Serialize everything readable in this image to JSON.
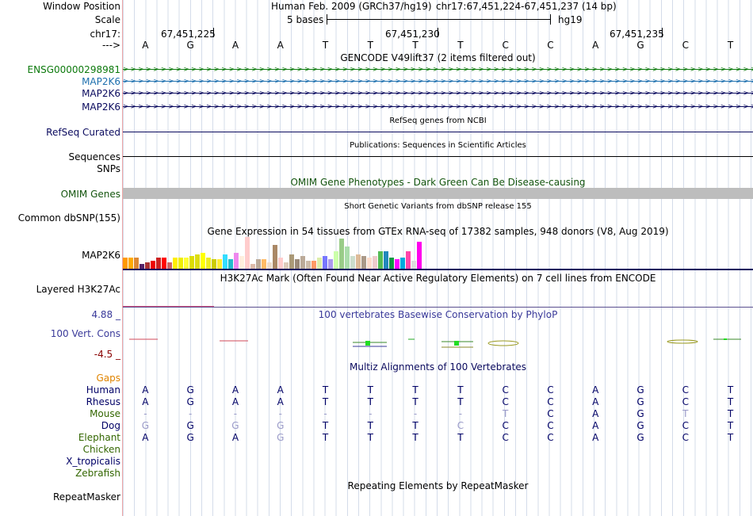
{
  "window_position": {
    "label": "Window Position",
    "assembly": "Human Feb. 2009 (GRCh37/hg19)",
    "range": "chr17:67,451,224-67,451,237 (14 bp)"
  },
  "scale": {
    "label": "Scale",
    "left": "5 bases",
    "right": "hg19"
  },
  "ruler": {
    "chrom_label": "chr17:",
    "strand_label": "--->",
    "ticks": [
      "67,451,225",
      "67,451,230",
      "67,451,235"
    ]
  },
  "bases": [
    "A",
    "G",
    "A",
    "A",
    "T",
    "T",
    "T",
    "T",
    "C",
    "C",
    "A",
    "G",
    "C",
    "T"
  ],
  "gencode": {
    "title": "GENCODE V49lift37 (2 items filtered out)",
    "tracks": [
      {
        "name": "ENSG00000298981",
        "color": "#0d7a0d"
      },
      {
        "name": "MAP2K6",
        "color": "#1d6fae"
      },
      {
        "name": "MAP2K6",
        "color": "#0a0a5e"
      },
      {
        "name": "MAP2K6",
        "color": "#0a0a5e"
      }
    ]
  },
  "refseq": {
    "title": "RefSeq genes from NCBI",
    "label": "RefSeq Curated"
  },
  "publications": {
    "title": "Publications: Sequences in Scientific Articles",
    "label": "Sequences"
  },
  "snps": {
    "label": "SNPs"
  },
  "omim": {
    "title": "OMIM Gene Phenotypes - Dark Green Can Be Disease-causing",
    "label": "OMIM Genes"
  },
  "dbsnp": {
    "title": "Short Genetic Variants from dbSNP release 155",
    "label": "Common dbSNP(155)"
  },
  "gtex": {
    "title": "Gene Expression in 54 tissues from GTEx RNA-seq of 17382 samples, 948 donors (V8, Aug 2019)",
    "label": "MAP2K6",
    "values": [
      0.35,
      0.35,
      0.35,
      0.15,
      0.2,
      0.25,
      0.35,
      0.35,
      0.2,
      0.35,
      0.35,
      0.35,
      0.4,
      0.45,
      0.5,
      0.35,
      0.3,
      0.3,
      0.45,
      0.3,
      0.5,
      0.4,
      1.0,
      0.15,
      0.3,
      0.3,
      0.2,
      0.75,
      0.35,
      0.2,
      0.45,
      0.3,
      0.4,
      0.25,
      0.25,
      0.35,
      0.4,
      0.3,
      0.55,
      0.95,
      0.7,
      0.4,
      0.45,
      0.4,
      0.35,
      0.4,
      0.55,
      0.55,
      0.35,
      0.3,
      0.35,
      0.55,
      0.25,
      0.85
    ],
    "colors": [
      "#ff9900",
      "#ffaa00",
      "#dd8833",
      "#552266",
      "#aa3333",
      "#ee0000",
      "#cc2222",
      "#ff0000",
      "#cc6666",
      "#ffee00",
      "#eeee00",
      "#ffff33",
      "#dddd00",
      "#dddd11",
      "#ffff00",
      "#eeee22",
      "#cccc00",
      "#ffee33",
      "#33ddff",
      "#22bbcc",
      "#ee88ee",
      "#ffeedd",
      "#ffcccc",
      "#ddbbaa",
      "#bbaa99",
      "#ffbb66",
      "#eeddcc",
      "#aa8866",
      "#ffcccc",
      "#ddccbb",
      "#aa9977",
      "#998877",
      "#bbaa99",
      "#ccbbaa",
      "#ff9966",
      "#ddeeaa",
      "#7777ff",
      "#aa99ee",
      "#ccffaa",
      "#99cc88",
      "#aaddaa",
      "#ccddcc",
      "#ddbb99",
      "#aa9988",
      "#ffddcc",
      "#eecccc",
      "#55bb55",
      "#2288bb",
      "#119944",
      "#ff00ff",
      "#00aadd",
      "#ff44aa",
      "#dddddd",
      "#ff00ee"
    ]
  },
  "h3k27ac": {
    "title": "H3K27Ac Mark (Often Found Near Active Regulatory Elements) on 7 cell lines from ENCODE",
    "label": "Layered H3K27Ac"
  },
  "phylop": {
    "title": "100 vertebrates Basewise Conservation by PhyloP",
    "label": "100 Vert. Cons",
    "max": "4.88 _",
    "min": "-4.5 _"
  },
  "multiz": {
    "title": "Multiz Alignments of 100 Vertebrates",
    "gaps_label": "Gaps",
    "species": [
      {
        "name": "Human",
        "color": "#000066",
        "bases": [
          "A",
          "G",
          "A",
          "A",
          "T",
          "T",
          "T",
          "T",
          "C",
          "C",
          "A",
          "G",
          "C",
          "T"
        ]
      },
      {
        "name": "Rhesus",
        "color": "#000066",
        "bases": [
          "A",
          "G",
          "A",
          "A",
          "T",
          "T",
          "T",
          "T",
          "C",
          "C",
          "A",
          "G",
          "C",
          "T"
        ]
      },
      {
        "name": "Mouse",
        "color": "#336600",
        "bases": [
          "-",
          "-",
          "-",
          "-",
          "-",
          "-",
          "-",
          "-",
          "T",
          "C",
          "A",
          "G",
          "T",
          "T"
        ]
      },
      {
        "name": "Dog",
        "color": "#000066",
        "bases": [
          "G",
          "G",
          "G",
          "G",
          "T",
          "T",
          "T",
          "C",
          "C",
          "C",
          "A",
          "G",
          "C",
          "T"
        ]
      },
      {
        "name": "Elephant",
        "color": "#336600",
        "bases": [
          "A",
          "G",
          "A",
          "G",
          "T",
          "T",
          "T",
          "T",
          "C",
          "C",
          "A",
          "G",
          "C",
          "T"
        ]
      },
      {
        "name": "Chicken",
        "color": "#336600",
        "bases": []
      },
      {
        "name": "X_tropicalis",
        "color": "#000066",
        "bases": []
      },
      {
        "name": "Zebrafish",
        "color": "#336600",
        "bases": []
      }
    ]
  },
  "repeatmasker": {
    "title": "Repeating Elements by RepeatMasker",
    "label": "RepeatMasker"
  },
  "colors": {
    "navy": "#0a0a5e",
    "omim_green": "#14550e",
    "gray_bar": "#bdbdbd",
    "gaps_orange": "#e08400",
    "phylop_blue": "#3a3a9a",
    "phylop_red": "#880000"
  }
}
